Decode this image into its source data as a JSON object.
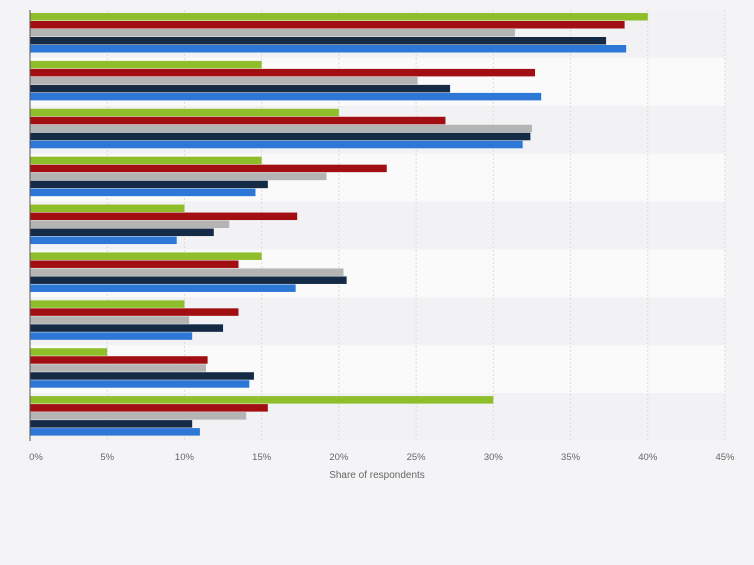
{
  "chart_data": {
    "type": "bar",
    "orientation": "horizontal",
    "title": "",
    "xlabel": "Share of respondents",
    "ylabel": "",
    "xlim": [
      0,
      45
    ],
    "x_ticks": [
      "0%",
      "5%",
      "10%",
      "15%",
      "20%",
      "25%",
      "30%",
      "35%",
      "40%",
      "45%"
    ],
    "grid": true,
    "legend": "none",
    "categories": [
      "",
      "",
      "",
      "",
      "",
      "",
      "",
      "",
      ""
    ],
    "series": [
      {
        "color": "#8ebf2b",
        "values": [
          40,
          15,
          20,
          15,
          10,
          15,
          10,
          5,
          30
        ]
      },
      {
        "color": "#a10f13",
        "values": [
          38.5,
          32.7,
          26.9,
          23.1,
          17.3,
          13.5,
          13.5,
          11.5,
          15.4
        ]
      },
      {
        "color": "#b4b4b4",
        "values": [
          31.4,
          25.1,
          32.5,
          19.2,
          12.9,
          20.3,
          10.3,
          11.4,
          14
        ]
      },
      {
        "color": "#142a45",
        "values": [
          37.3,
          27.2,
          32.4,
          15.4,
          11.9,
          20.5,
          12.5,
          14.5,
          10.5
        ]
      },
      {
        "color": "#2d77d6",
        "values": [
          38.6,
          33.1,
          31.9,
          14.6,
          9.5,
          17.2,
          10.5,
          14.2,
          11
        ]
      }
    ]
  }
}
